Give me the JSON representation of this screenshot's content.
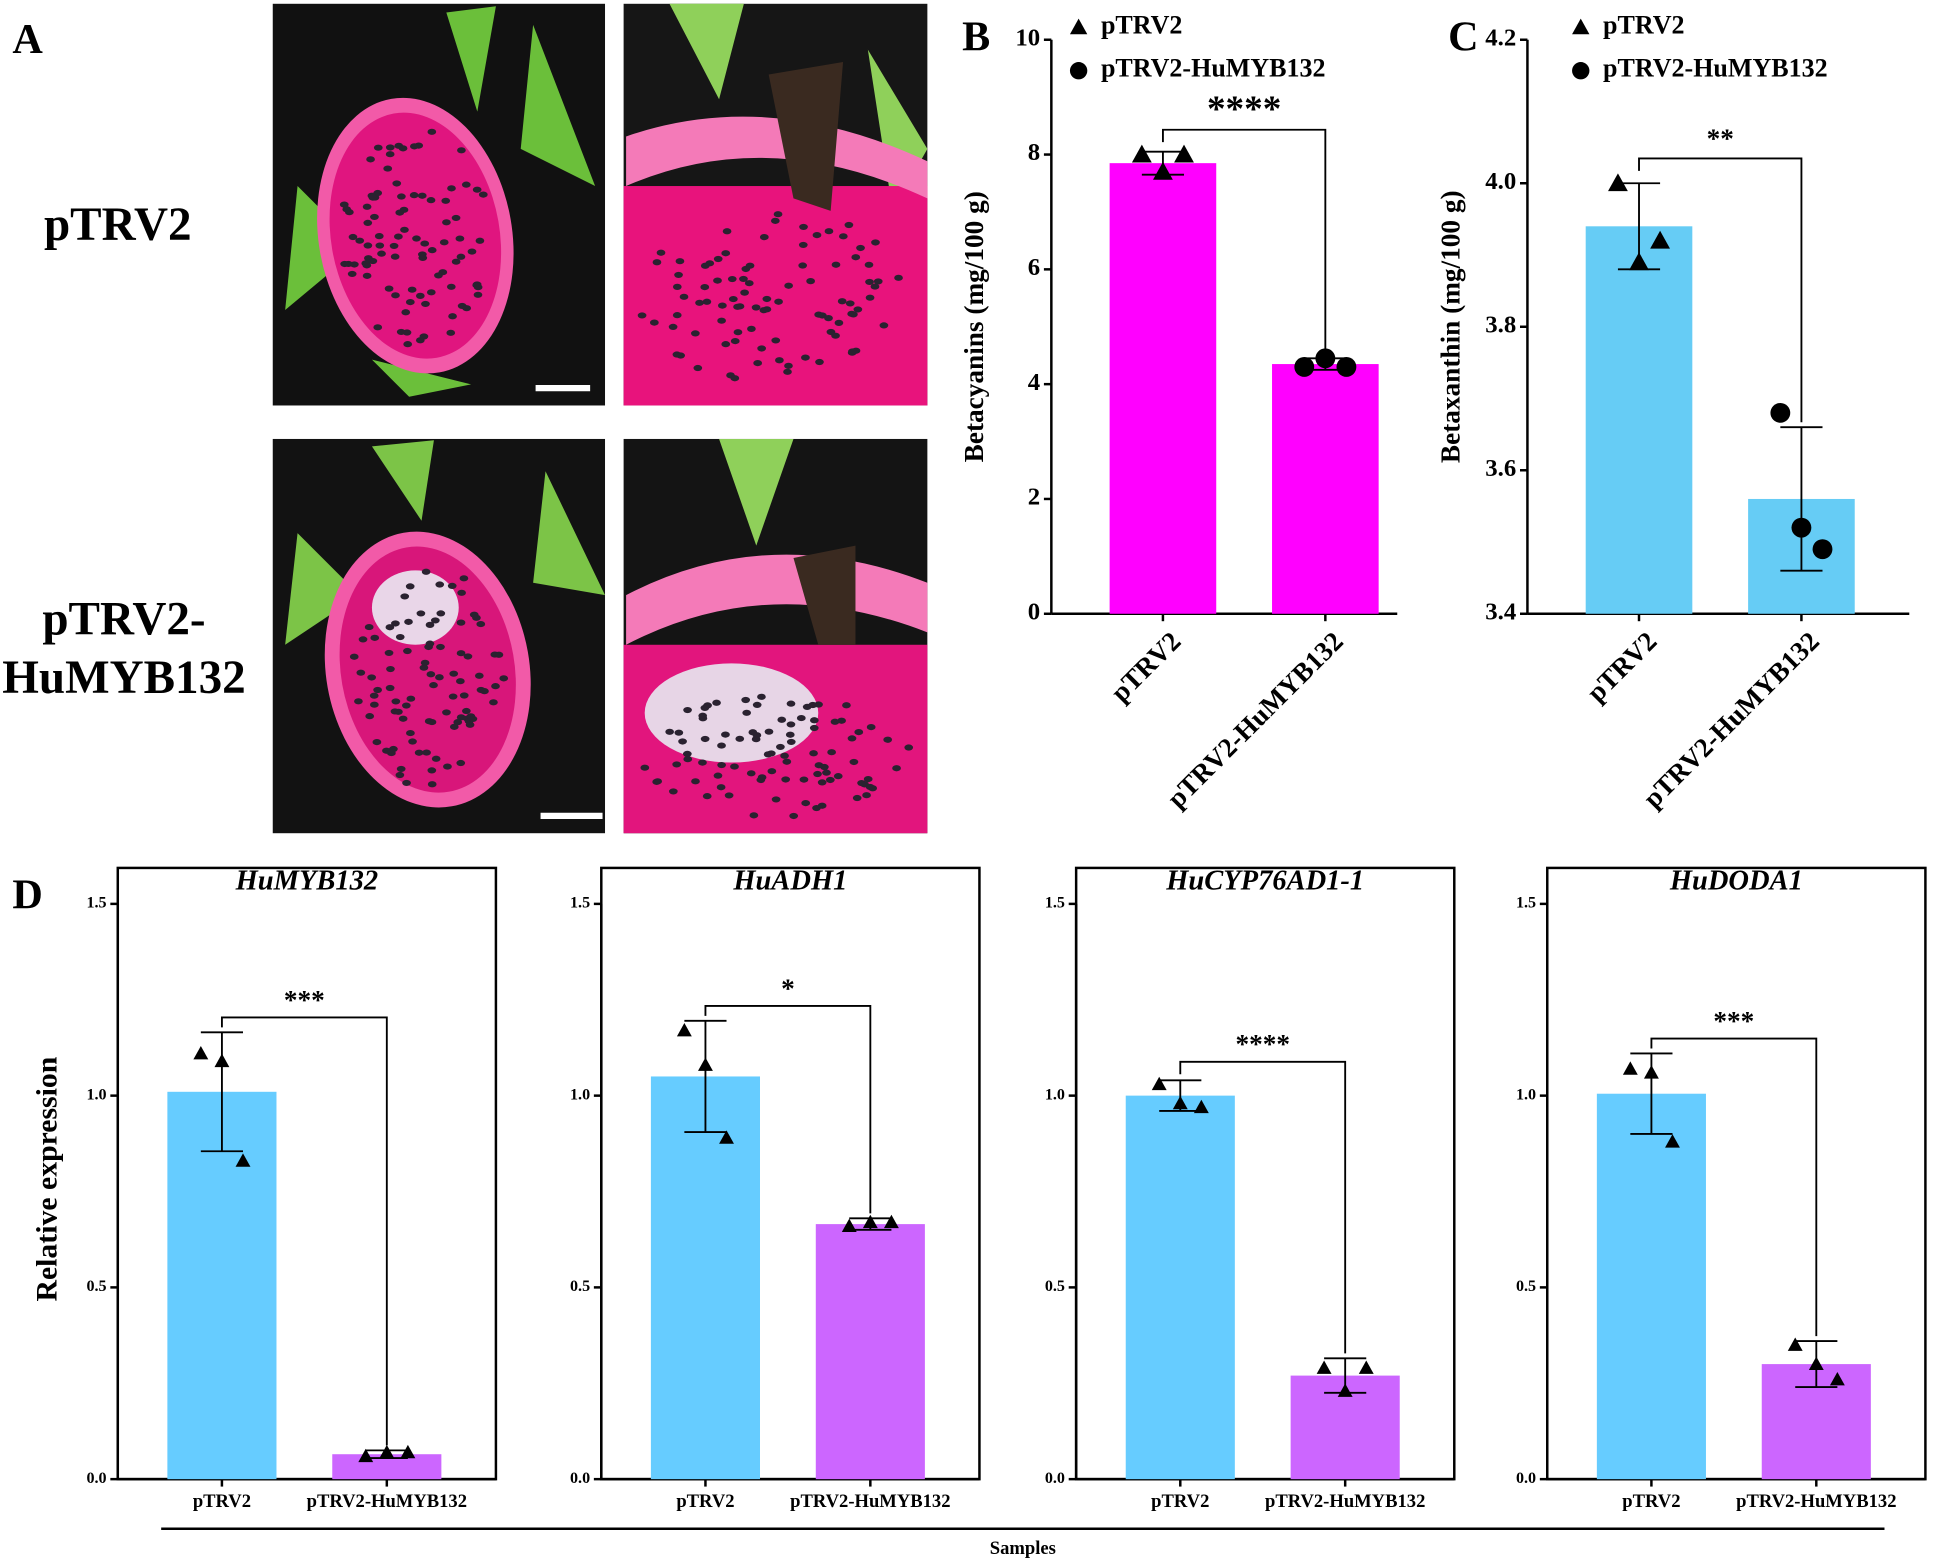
{
  "panel_labels": [
    "A",
    "B",
    "C",
    "D"
  ],
  "photo_labels": {
    "row1": "pTRV2",
    "row2": [
      "pTRV2-",
      "HuMYB132"
    ]
  },
  "d_xlabel": "Samples",
  "chart_data": [
    {
      "type": "bar",
      "ylabel": "Betacyanins (mg/100 g)",
      "categories": [
        "pTRV2",
        "pTRV2-HuMYB132"
      ],
      "legend": [
        "pTRV2",
        "pTRV2-HuMYB132"
      ],
      "markers": [
        "triangle",
        "circle"
      ],
      "values": [
        7.85,
        4.35
      ],
      "errors": [
        0.2,
        0.1
      ],
      "points": [
        [
          8.0,
          7.7,
          8.0
        ],
        [
          4.3,
          4.45,
          4.3
        ]
      ],
      "colors": [
        "#ff00ff",
        "#ff00ff"
      ],
      "significance": "****",
      "ylim": [
        0,
        10
      ],
      "yticks": [
        0,
        2,
        4,
        6,
        8,
        10
      ]
    },
    {
      "type": "bar",
      "ylabel": "Betaxanthin (mg/100 g)",
      "categories": [
        "pTRV2",
        "pTRV2-HuMYB132"
      ],
      "legend": [
        "pTRV2",
        "pTRV2-HuMYB132"
      ],
      "markers": [
        "triangle",
        "circle"
      ],
      "values": [
        3.94,
        3.56
      ],
      "errors": [
        0.06,
        0.1
      ],
      "points": [
        [
          4.0,
          3.89,
          3.92
        ],
        [
          3.68,
          3.52,
          3.49
        ]
      ],
      "colors": [
        "#66ccf5",
        "#66ccf5"
      ],
      "significance": "**",
      "ylim": [
        3.4,
        4.2
      ],
      "yticks": [
        3.4,
        3.6,
        3.8,
        {
          "value": 4.0,
          "label": "4.0"
        },
        4.2
      ]
    },
    {
      "type": "bar",
      "title": "HuMYB132",
      "ylabel": "Relative expression",
      "categories": [
        "pTRV2",
        "pTRV2-HuMYB132"
      ],
      "markers": [
        "triangle",
        "triangle"
      ],
      "values": [
        1.01,
        0.065
      ],
      "errors": [
        0.155,
        0.01
      ],
      "points": [
        [
          1.11,
          1.09,
          0.83
        ],
        [
          0.06,
          0.07,
          0.07
        ]
      ],
      "colors": [
        "#66ccff",
        "#cc66ff"
      ],
      "significance": "***",
      "ylim": [
        0,
        1.5
      ],
      "yticks": [
        {
          "value": 0,
          "label": "0.0"
        },
        0.5,
        {
          "value": 1,
          "label": "1.0"
        },
        1.5
      ]
    },
    {
      "type": "bar",
      "title": "HuADH1",
      "categories": [
        "pTRV2",
        "pTRV2-HuMYB132"
      ],
      "markers": [
        "triangle",
        "triangle"
      ],
      "values": [
        1.05,
        0.665
      ],
      "errors": [
        0.145,
        0.015
      ],
      "points": [
        [
          1.17,
          1.08,
          0.89
        ],
        [
          0.66,
          0.67,
          0.67
        ]
      ],
      "colors": [
        "#66ccff",
        "#cc66ff"
      ],
      "significance": "*",
      "ylim": [
        0,
        1.5
      ],
      "yticks": [
        {
          "value": 0,
          "label": "0.0"
        },
        0.5,
        {
          "value": 1,
          "label": "1.0"
        },
        1.5
      ]
    },
    {
      "type": "bar",
      "title": "HuCYP76AD1-1",
      "categories": [
        "pTRV2",
        "pTRV2-HuMYB132"
      ],
      "markers": [
        "triangle",
        "triangle"
      ],
      "values": [
        1.0,
        0.27
      ],
      "errors": [
        0.04,
        0.045
      ],
      "points": [
        [
          1.03,
          0.98,
          0.97
        ],
        [
          0.29,
          0.23,
          0.29
        ]
      ],
      "colors": [
        "#66ccff",
        "#cc66ff"
      ],
      "significance": "****",
      "ylim": [
        0,
        1.5
      ],
      "yticks": [
        {
          "value": 0,
          "label": "0.0"
        },
        0.5,
        {
          "value": 1,
          "label": "1.0"
        },
        1.5
      ]
    },
    {
      "type": "bar",
      "title": "HuDODA1",
      "categories": [
        "pTRV2",
        "pTRV2-HuMYB132"
      ],
      "markers": [
        "triangle",
        "triangle"
      ],
      "values": [
        1.005,
        0.3
      ],
      "errors": [
        0.105,
        0.06
      ],
      "points": [
        [
          1.07,
          1.06,
          0.88
        ],
        [
          0.35,
          0.3,
          0.26
        ]
      ],
      "colors": [
        "#66ccff",
        "#cc66ff"
      ],
      "significance": "***",
      "ylim": [
        0,
        1.5
      ],
      "yticks": [
        {
          "value": 0,
          "label": "0.0"
        },
        0.5,
        {
          "value": 1,
          "label": "1.0"
        },
        1.5
      ]
    }
  ]
}
